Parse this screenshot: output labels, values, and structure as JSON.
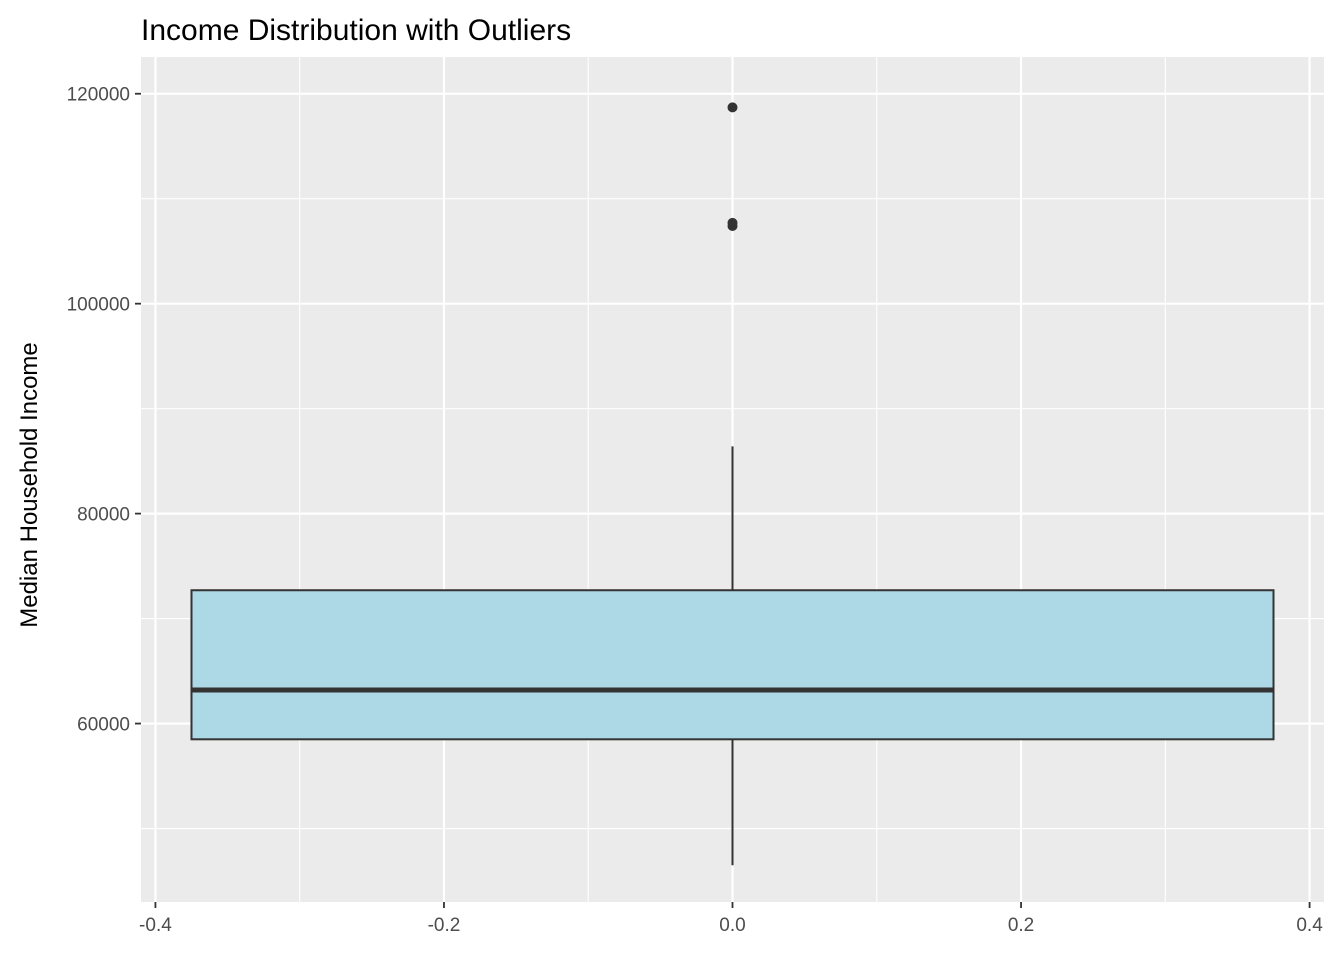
{
  "chart_data": {
    "type": "boxplot",
    "title": "Income Distribution with Outliers",
    "xlabel": "",
    "ylabel": "Median Household Income",
    "xlim": [
      -0.41,
      0.41
    ],
    "ylim": [
      43000,
      123500
    ],
    "x_ticks": [
      -0.4,
      -0.2,
      0.0,
      0.2,
      0.4
    ],
    "x_tick_labels": [
      "-0.4",
      "-0.2",
      "0.0",
      "0.2",
      "0.4"
    ],
    "y_ticks": [
      60000,
      80000,
      100000,
      120000
    ],
    "y_tick_labels": [
      "60000",
      "80000",
      "100000",
      "120000"
    ],
    "grid": true,
    "box": {
      "x_center": 0.0,
      "x_left": -0.375,
      "x_right": 0.375,
      "whisker_low": 46500,
      "q1": 58500,
      "median": 63200,
      "q3": 72700,
      "whisker_high": 86400
    },
    "outliers": [
      118700,
      107400,
      107700
    ],
    "colors": {
      "panel": "#EBEBEB",
      "grid": "#FFFFFF",
      "box_fill": "#ADD8E6",
      "box_line": "#333333"
    }
  }
}
